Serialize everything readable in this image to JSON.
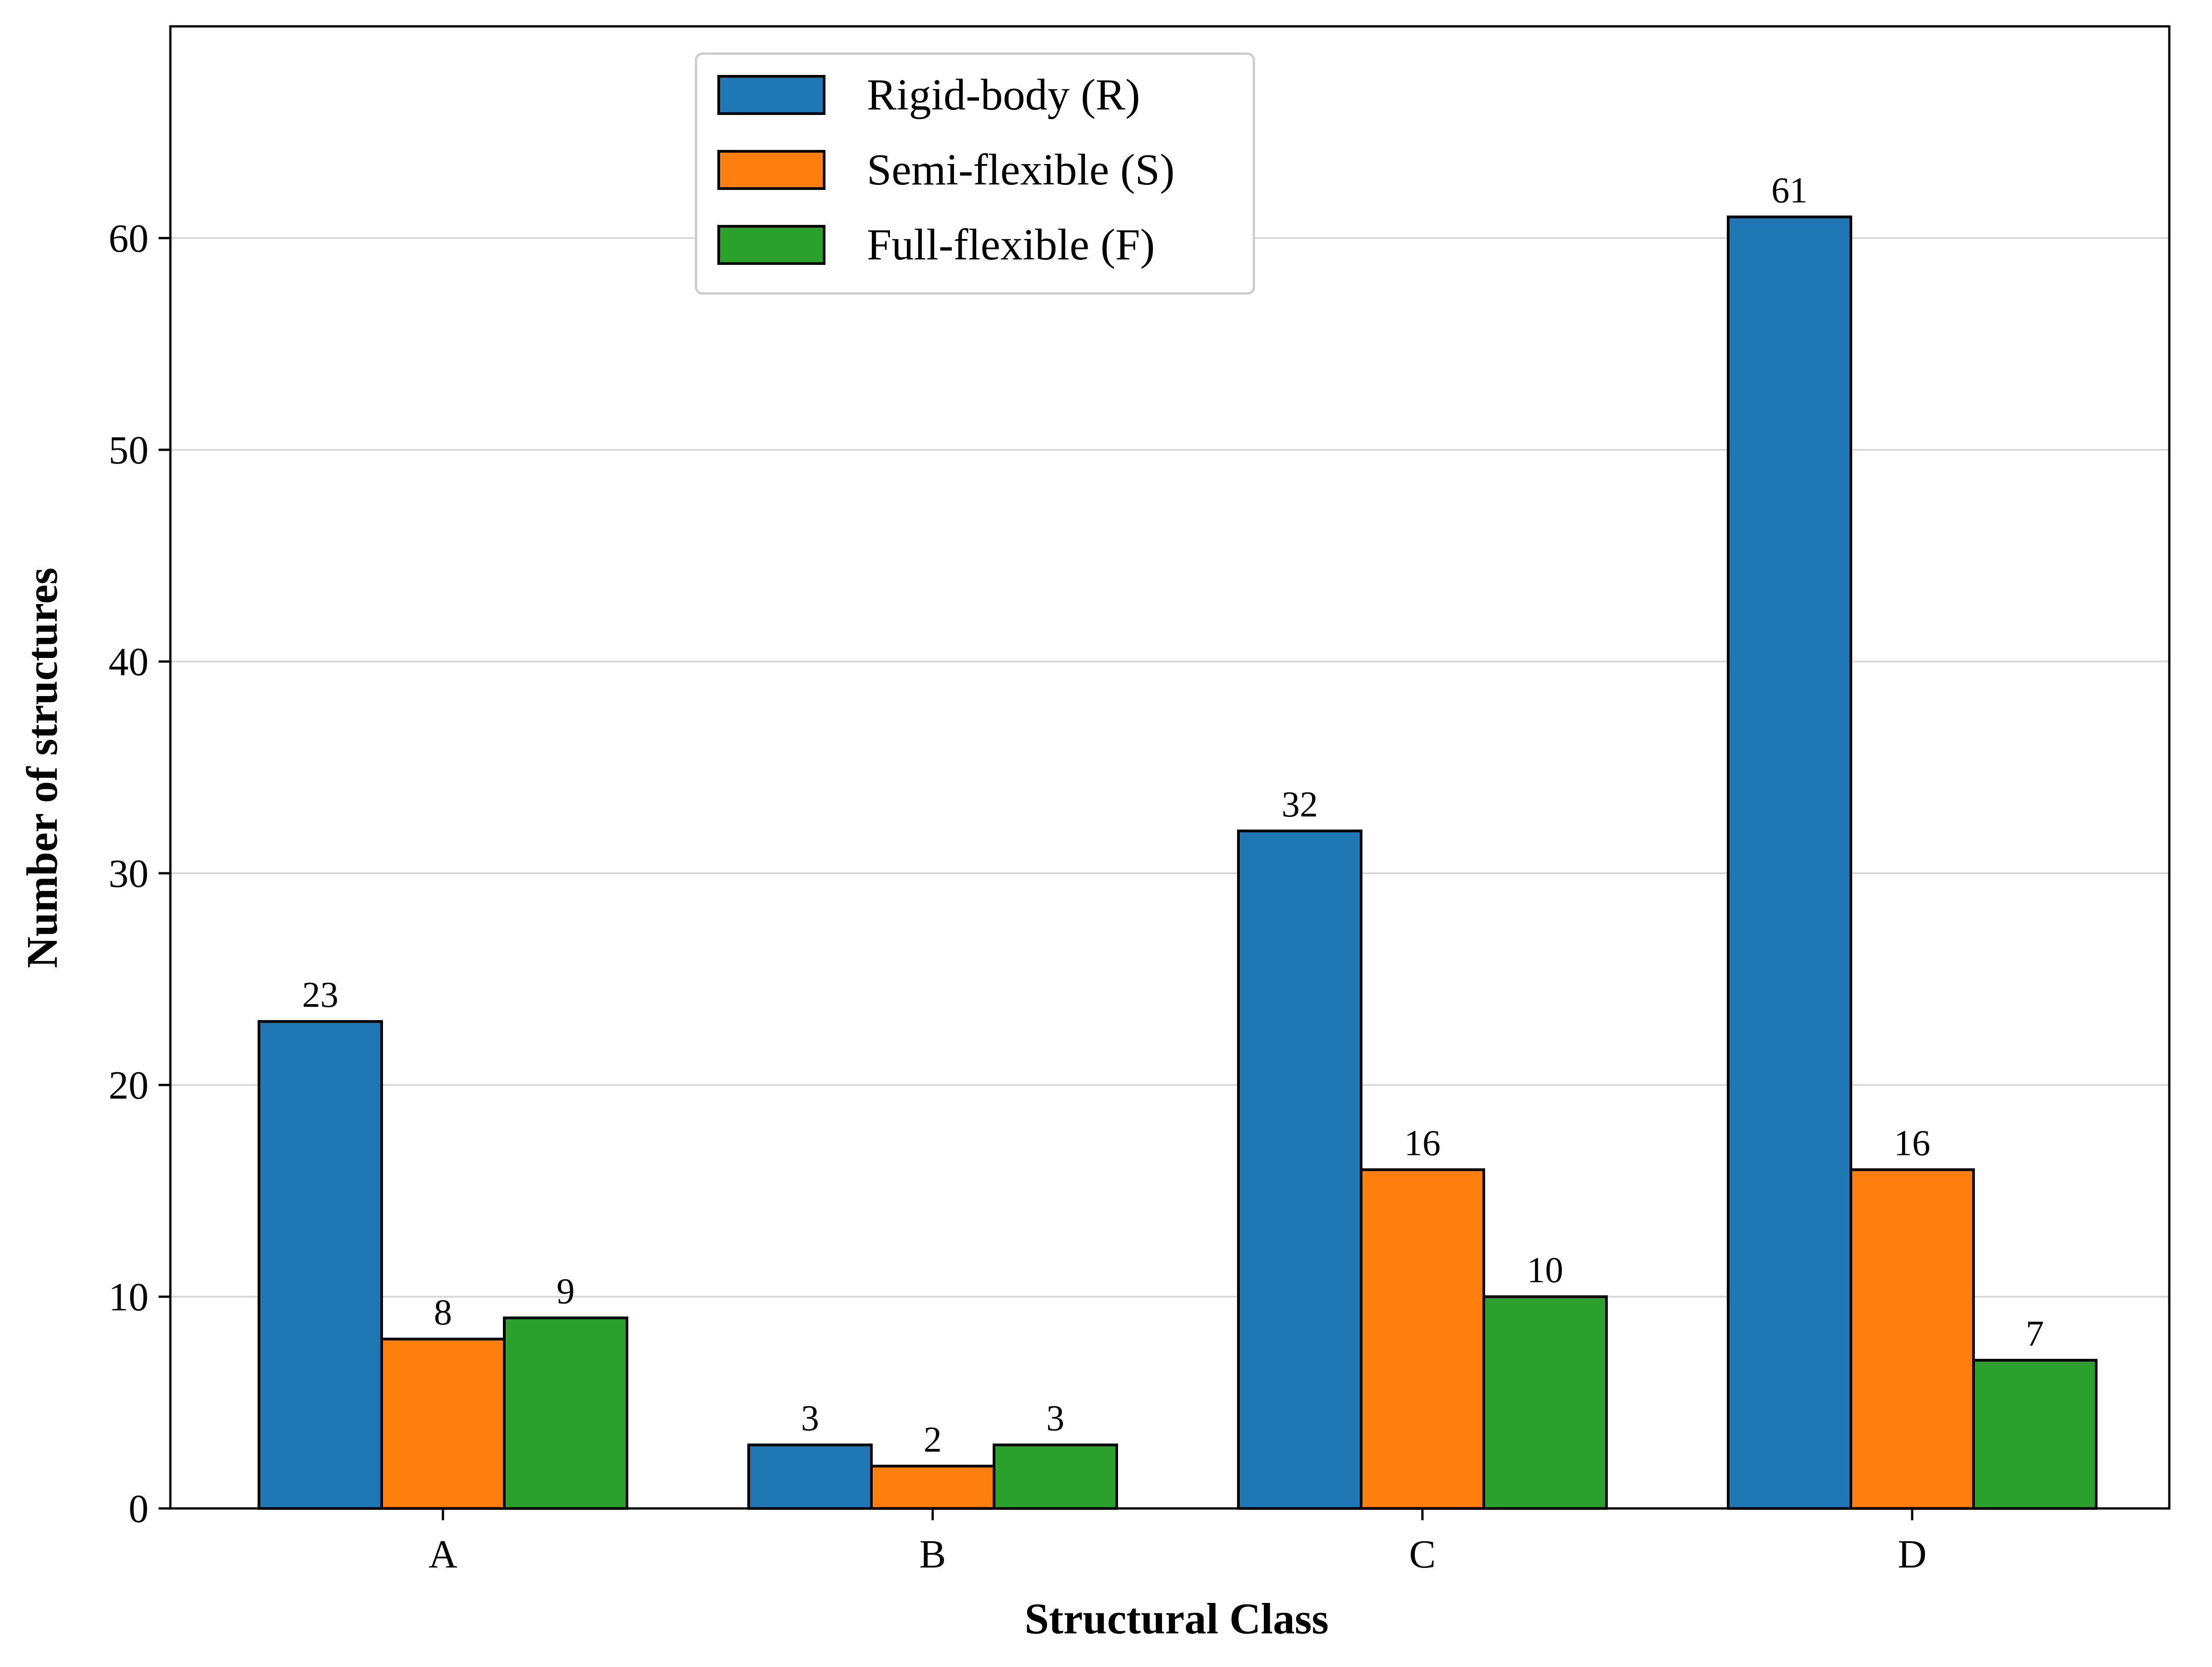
{
  "chart_data": {
    "type": "bar",
    "title": "",
    "xlabel": "Structural Class",
    "ylabel": "Number of structures",
    "categories": [
      "A",
      "B",
      "C",
      "D"
    ],
    "series": [
      {
        "name": "Rigid-body (R)",
        "color": "#1f77b4",
        "values": [
          23,
          3,
          32,
          61
        ]
      },
      {
        "name": "Semi-flexible (S)",
        "color": "#ff7f0e",
        "values": [
          8,
          2,
          16,
          16
        ]
      },
      {
        "name": "Full-flexible (F)",
        "color": "#2ca02c",
        "values": [
          9,
          3,
          10,
          7
        ]
      }
    ],
    "ylim": [
      0,
      70
    ],
    "yticks": [
      0,
      10,
      20,
      30,
      40,
      50,
      60
    ],
    "grid": "y",
    "legend_position": "top-center"
  }
}
